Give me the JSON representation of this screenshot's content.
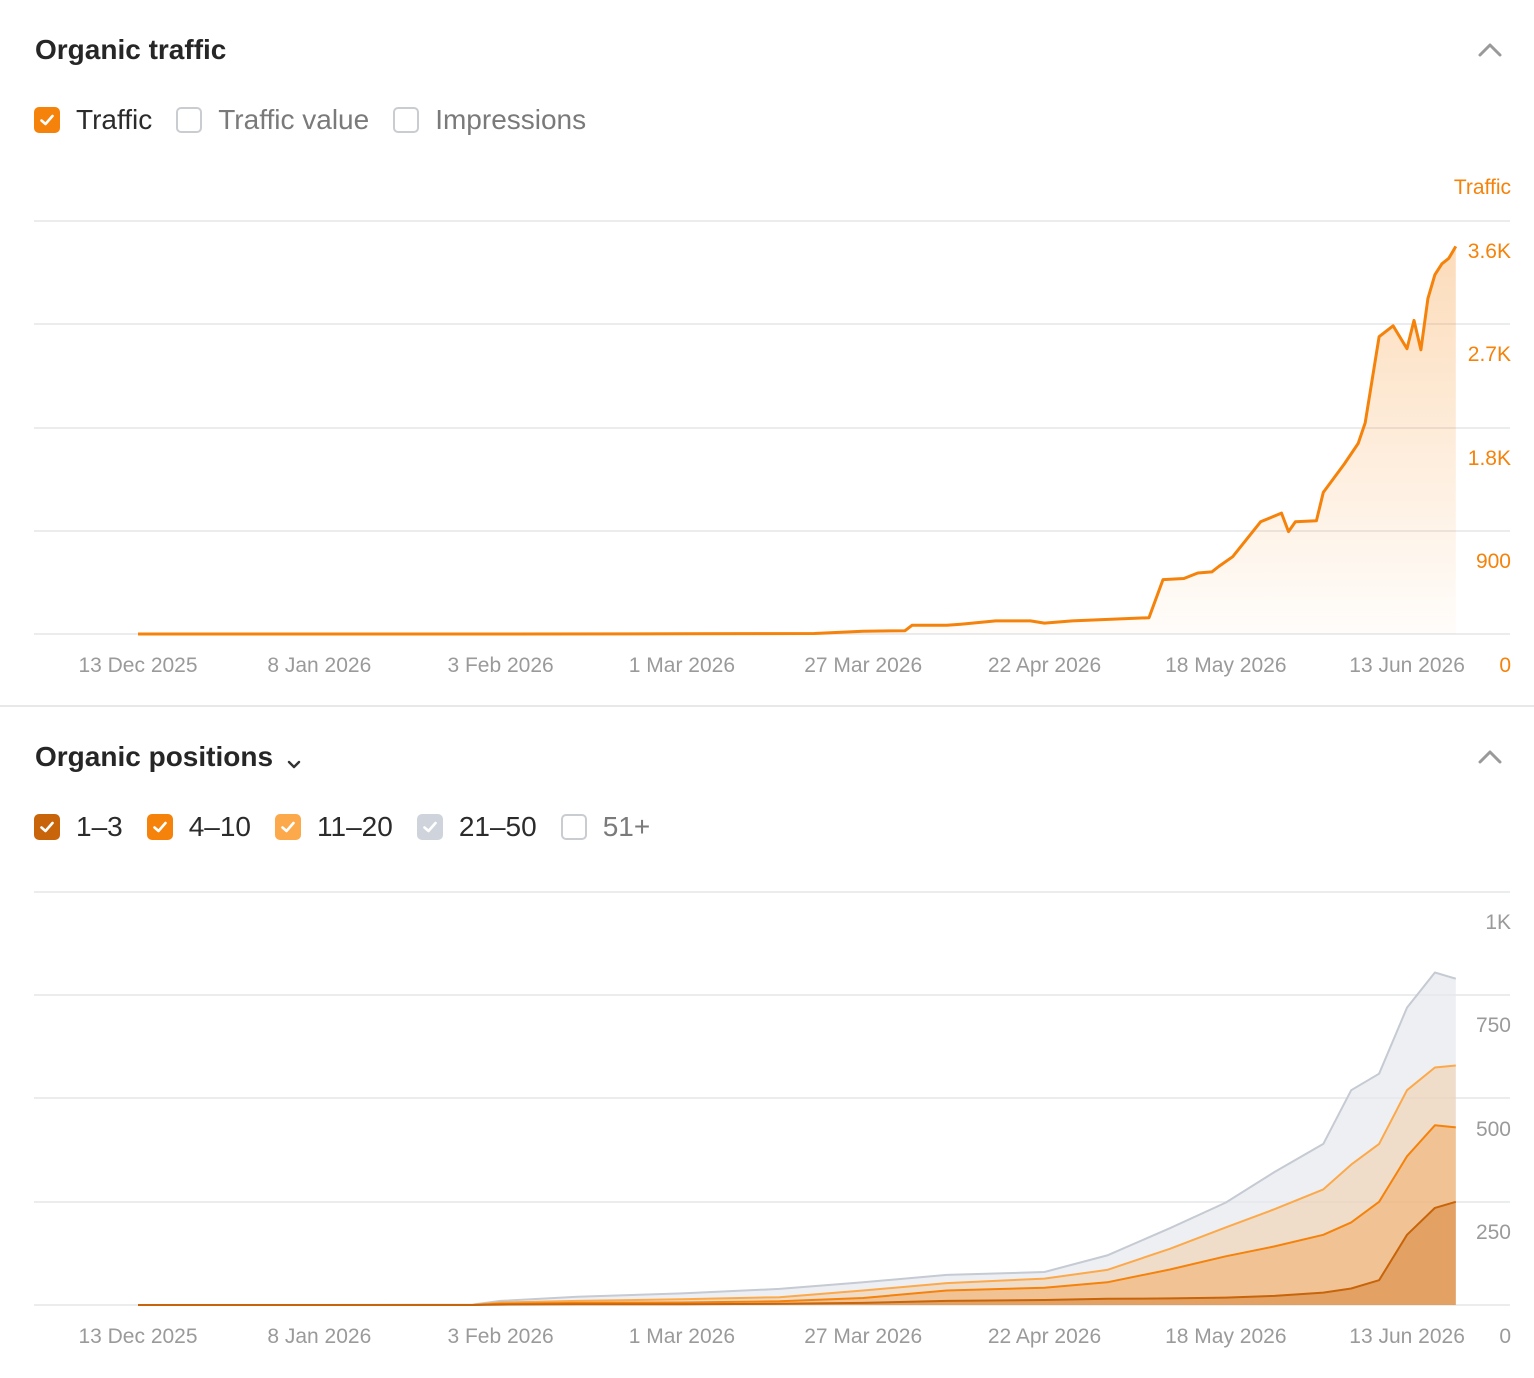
{
  "panels": {
    "traffic": {
      "title": "Organic traffic",
      "legend": [
        {
          "label": "Traffic",
          "checked": true,
          "color": "#f5820a"
        },
        {
          "label": "Traffic value",
          "checked": false,
          "color": "#c9ccd1"
        },
        {
          "label": "Impressions",
          "checked": false,
          "color": "#c9ccd1"
        }
      ]
    },
    "positions": {
      "title": "Organic positions",
      "legend": [
        {
          "label": "1–3",
          "checked": true,
          "color": "#c8640a"
        },
        {
          "label": "4–10",
          "checked": true,
          "color": "#f5820a"
        },
        {
          "label": "11–20",
          "checked": true,
          "color": "#fba94a"
        },
        {
          "label": "21–50",
          "checked": true,
          "color": "#cfd4dc"
        },
        {
          "label": "51+",
          "checked": false,
          "color": "#c9ccd1"
        }
      ]
    }
  },
  "chart_data": [
    {
      "type": "area",
      "title": "Organic traffic",
      "ylabel": "Traffic",
      "ylim": [
        0,
        3600
      ],
      "y_ticks": [
        "0",
        "900",
        "1.8K",
        "2.7K",
        "3.6K"
      ],
      "x_ticks": [
        "13 Dec 2025",
        "8 Jan 2026",
        "3 Feb 2026",
        "1 Mar 2026",
        "27 Mar 2026",
        "22 Apr 2026",
        "18 May 2026",
        "13 Jun 2026"
      ],
      "grid": true,
      "color": "#f5820a",
      "series": [
        {
          "name": "Traffic",
          "points": [
            [
              "2025-12-13",
              0
            ],
            [
              "2026-01-08",
              0
            ],
            [
              "2026-02-03",
              0
            ],
            [
              "2026-03-01",
              2
            ],
            [
              "2026-03-20",
              5
            ],
            [
              "2026-03-27",
              25
            ],
            [
              "2026-04-02",
              30
            ],
            [
              "2026-04-03",
              80
            ],
            [
              "2026-04-08",
              80
            ],
            [
              "2026-04-10",
              90
            ],
            [
              "2026-04-15",
              120
            ],
            [
              "2026-04-20",
              120
            ],
            [
              "2026-04-22",
              100
            ],
            [
              "2026-04-26",
              120
            ],
            [
              "2026-05-07",
              150
            ],
            [
              "2026-05-09",
              500
            ],
            [
              "2026-05-12",
              510
            ],
            [
              "2026-05-14",
              560
            ],
            [
              "2026-05-16",
              570
            ],
            [
              "2026-05-17",
              620
            ],
            [
              "2026-05-19",
              710
            ],
            [
              "2026-05-23",
              1030
            ],
            [
              "2026-05-26",
              1110
            ],
            [
              "2026-05-27",
              940
            ],
            [
              "2026-05-28",
              1030
            ],
            [
              "2026-05-31",
              1040
            ],
            [
              "2026-06-01",
              1300
            ],
            [
              "2026-06-04",
              1560
            ],
            [
              "2026-06-06",
              1750
            ],
            [
              "2026-06-07",
              1940
            ],
            [
              "2026-06-09",
              2730
            ],
            [
              "2026-06-11",
              2830
            ],
            [
              "2026-06-13",
              2620
            ],
            [
              "2026-06-14",
              2880
            ],
            [
              "2026-06-15",
              2610
            ],
            [
              "2026-06-16",
              3080
            ],
            [
              "2026-06-17",
              3300
            ],
            [
              "2026-06-18",
              3400
            ],
            [
              "2026-06-19",
              3450
            ],
            [
              "2026-06-20",
              3560
            ]
          ]
        }
      ]
    },
    {
      "type": "area",
      "title": "Organic positions",
      "stacked": true,
      "ylim": [
        0,
        1000
      ],
      "y_ticks": [
        "0",
        "250",
        "500",
        "750",
        "1K"
      ],
      "x_ticks": [
        "13 Dec 2025",
        "8 Jan 2026",
        "3 Feb 2026",
        "1 Mar 2026",
        "27 Mar 2026",
        "22 Apr 2026",
        "18 May 2026",
        "13 Jun 2026"
      ],
      "grid": true,
      "dates": [
        "2025-12-13",
        "2026-01-08",
        "2026-01-30",
        "2026-02-03",
        "2026-02-14",
        "2026-03-01",
        "2026-03-15",
        "2026-03-27",
        "2026-04-08",
        "2026-04-22",
        "2026-05-01",
        "2026-05-10",
        "2026-05-18",
        "2026-05-25",
        "2026-06-01",
        "2026-06-05",
        "2026-06-09",
        "2026-06-13",
        "2026-06-17",
        "2026-06-20"
      ],
      "series": [
        {
          "name": "1–3",
          "color": "#c8640a",
          "values": [
            0,
            0,
            0,
            1,
            2,
            2,
            3,
            5,
            10,
            12,
            15,
            16,
            18,
            22,
            30,
            40,
            60,
            170,
            235,
            250
          ]
        },
        {
          "name": "4–10",
          "color": "#f5820a",
          "values": [
            0,
            0,
            0,
            2,
            3,
            4,
            6,
            12,
            25,
            30,
            40,
            70,
            100,
            120,
            140,
            160,
            190,
            190,
            200,
            180
          ]
        },
        {
          "name": "11–20",
          "color": "#fba94a",
          "values": [
            0,
            0,
            0,
            3,
            5,
            8,
            10,
            18,
            18,
            22,
            30,
            50,
            70,
            90,
            110,
            140,
            140,
            160,
            140,
            150
          ]
        },
        {
          "name": "21–50",
          "color": "#cfd4dc",
          "values": [
            0,
            0,
            1,
            4,
            10,
            14,
            20,
            20,
            20,
            16,
            35,
            50,
            60,
            90,
            110,
            180,
            170,
            200,
            230,
            210
          ]
        }
      ]
    }
  ]
}
